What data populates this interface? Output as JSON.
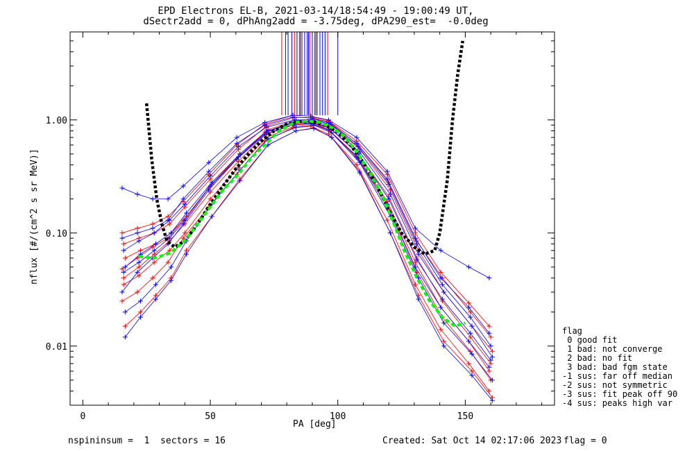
{
  "title_line1": "EPD Electrons EL-B, 2021-03-14/18:54:49 - 19:00:49 UT,",
  "title_line2": "dSectr2add = 0, dPhAng2add = -3.75deg, dPA290_est=  -0.0deg",
  "footer": {
    "left": "nspininsum =  1  sectors = 16",
    "created": "Created: Sat Oct 14 02:17:06 2023",
    "flag": "flag = 0"
  },
  "legend": {
    "title": "flag",
    "lines": [
      " 0 good fit",
      " 1 bad: not converge",
      " 2 bad: no fit",
      " 3 bad: bad fgm state",
      "-1 sus: far off median",
      "-2 sus: not symmetric",
      "-3 sus: fit peak off 90",
      "-4 sus: peaks high var"
    ]
  },
  "colors": {
    "red_series": "#ff0000",
    "blue_series": "#0000ff",
    "fit": "#000000",
    "median": "#00ff00"
  },
  "chart_data": {
    "type": "line",
    "xlabel": "PA [deg]",
    "ylabel": "nflux [#/(cm^2 s sr MeV)]",
    "xlim": [
      -5,
      185
    ],
    "ylim": [
      0.003,
      6
    ],
    "yscale": "log",
    "xticks": [
      0,
      50,
      100,
      150
    ],
    "yticks": [
      {
        "value": 0.01,
        "label": "0.01"
      },
      {
        "value": 0.1,
        "label": "0.10"
      },
      {
        "value": 1.0,
        "label": "1.00"
      }
    ],
    "pa_bins": [
      16,
      22,
      28,
      34,
      40,
      50,
      61,
      72,
      83,
      90,
      97,
      108,
      120,
      131,
      141,
      152,
      160
    ],
    "typical_profile": [
      0.05,
      0.055,
      0.065,
      0.08,
      0.12,
      0.22,
      0.42,
      0.75,
      0.95,
      0.95,
      0.85,
      0.5,
      0.2,
      0.06,
      0.028,
      0.014,
      0.008
    ],
    "series": [
      {
        "name": "flag 0 red",
        "color": "red",
        "values": [
          0.048,
          0.06,
          0.075,
          0.09,
          0.13,
          0.25,
          0.45,
          0.78,
          0.93,
          0.96,
          0.82,
          0.48,
          0.19,
          0.055,
          0.022,
          0.011,
          0.006
        ]
      },
      {
        "name": "flag 0 red",
        "color": "red",
        "values": [
          0.035,
          0.042,
          0.055,
          0.07,
          0.1,
          0.2,
          0.38,
          0.7,
          0.88,
          0.92,
          0.8,
          0.45,
          0.16,
          0.045,
          0.018,
          0.009,
          0.005
        ]
      },
      {
        "name": "flag 0 red",
        "color": "red",
        "values": [
          0.06,
          0.07,
          0.08,
          0.1,
          0.14,
          0.27,
          0.5,
          0.82,
          0.99,
          1.02,
          0.9,
          0.55,
          0.24,
          0.07,
          0.03,
          0.015,
          0.009
        ]
      },
      {
        "name": "flag 0 red",
        "color": "red",
        "values": [
          0.025,
          0.03,
          0.04,
          0.055,
          0.09,
          0.17,
          0.33,
          0.65,
          0.85,
          0.88,
          0.75,
          0.4,
          0.13,
          0.035,
          0.014,
          0.007,
          0.004
        ]
      },
      {
        "name": "flag 0 red",
        "color": "red",
        "values": [
          0.08,
          0.09,
          0.1,
          0.12,
          0.17,
          0.3,
          0.55,
          0.88,
          1.05,
          1.05,
          0.95,
          0.6,
          0.28,
          0.085,
          0.04,
          0.02,
          0.012
        ]
      },
      {
        "name": "flag 0 red",
        "color": "red",
        "values": [
          0.015,
          0.02,
          0.028,
          0.04,
          0.07,
          0.14,
          0.3,
          0.6,
          0.8,
          0.85,
          0.7,
          0.35,
          0.1,
          0.028,
          0.011,
          0.006,
          0.0035
        ]
      },
      {
        "name": "flag 0 red",
        "color": "red",
        "values": [
          0.1,
          0.11,
          0.12,
          0.14,
          0.19,
          0.33,
          0.6,
          0.92,
          1.1,
          1.08,
          0.98,
          0.65,
          0.33,
          0.1,
          0.045,
          0.024,
          0.015
        ]
      },
      {
        "name": "flag 0 red",
        "color": "red",
        "values": [
          0.04,
          0.05,
          0.065,
          0.085,
          0.12,
          0.23,
          0.43,
          0.76,
          0.92,
          0.94,
          0.84,
          0.5,
          0.21,
          0.06,
          0.025,
          0.012,
          0.007
        ]
      },
      {
        "name": "flag 0 blue",
        "color": "blue",
        "values": [
          0.05,
          0.065,
          0.08,
          0.1,
          0.15,
          0.28,
          0.5,
          0.8,
          0.97,
          0.98,
          0.86,
          0.52,
          0.22,
          0.065,
          0.03,
          0.015,
          0.008
        ]
      },
      {
        "name": "flag 0 blue",
        "color": "blue",
        "values": [
          0.03,
          0.045,
          0.06,
          0.08,
          0.12,
          0.24,
          0.45,
          0.74,
          0.9,
          0.93,
          0.82,
          0.47,
          0.18,
          0.05,
          0.022,
          0.011,
          0.0065
        ]
      },
      {
        "name": "flag 0 blue",
        "color": "blue",
        "values": [
          0.07,
          0.085,
          0.1,
          0.13,
          0.18,
          0.32,
          0.58,
          0.86,
          1.0,
          1.0,
          0.92,
          0.58,
          0.27,
          0.08,
          0.035,
          0.018,
          0.01
        ]
      },
      {
        "name": "flag 0 blue",
        "color": "blue",
        "values": [
          0.02,
          0.025,
          0.035,
          0.05,
          0.085,
          0.18,
          0.36,
          0.68,
          0.86,
          0.9,
          0.77,
          0.42,
          0.14,
          0.04,
          0.016,
          0.0085,
          0.005
        ]
      },
      {
        "name": "flag 0 blue",
        "color": "blue",
        "values": [
          0.09,
          0.1,
          0.11,
          0.13,
          0.2,
          0.35,
          0.62,
          0.9,
          1.06,
          1.04,
          0.95,
          0.62,
          0.3,
          0.09,
          0.04,
          0.022,
          0.013
        ]
      },
      {
        "name": "flag 0 blue",
        "color": "blue",
        "values": [
          0.045,
          0.055,
          0.07,
          0.09,
          0.13,
          0.26,
          0.47,
          0.78,
          0.95,
          0.96,
          0.85,
          0.5,
          0.2,
          0.058,
          0.026,
          0.013,
          0.0075
        ]
      },
      {
        "name": "flag 0 blue",
        "color": "blue",
        "values": [
          0.012,
          0.018,
          0.026,
          0.038,
          0.065,
          0.14,
          0.29,
          0.6,
          0.8,
          0.84,
          0.7,
          0.34,
          0.1,
          0.026,
          0.01,
          0.0055,
          0.0033
        ]
      },
      {
        "name": "flag 0 blue",
        "color": "blue",
        "values": [
          0.25,
          0.22,
          0.2,
          0.2,
          0.26,
          0.42,
          0.7,
          0.95,
          1.1,
          1.08,
          1.0,
          0.7,
          0.35,
          0.11,
          0.07,
          0.05,
          0.04
        ]
      }
    ],
    "fit_curve": {
      "name": "fit",
      "x": [
        25,
        27,
        29,
        31,
        33,
        36,
        40,
        45,
        50,
        55,
        60,
        65,
        70,
        75,
        80,
        85,
        90,
        95,
        100,
        105,
        110,
        115,
        120,
        125,
        130,
        134,
        138,
        140,
        143,
        145,
        147,
        149
      ],
      "y": [
        1.4,
        0.45,
        0.2,
        0.12,
        0.085,
        0.075,
        0.085,
        0.12,
        0.18,
        0.26,
        0.37,
        0.5,
        0.65,
        0.8,
        0.92,
        0.97,
        0.96,
        0.9,
        0.78,
        0.6,
        0.42,
        0.27,
        0.16,
        0.1,
        0.075,
        0.065,
        0.07,
        0.1,
        0.3,
        1.0,
        2.5,
        5.0
      ]
    },
    "median_curve": {
      "name": "median",
      "x": [
        22,
        28,
        34,
        40,
        45,
        50,
        55,
        61,
        66,
        72,
        77,
        83,
        88,
        93,
        98,
        103,
        108,
        113,
        118,
        122,
        126,
        131,
        136,
        141,
        146,
        150
      ],
      "y": [
        0.062,
        0.06,
        0.066,
        0.085,
        0.12,
        0.17,
        0.24,
        0.33,
        0.46,
        0.62,
        0.8,
        0.95,
        0.98,
        0.95,
        0.85,
        0.7,
        0.5,
        0.33,
        0.2,
        0.12,
        0.07,
        0.04,
        0.025,
        0.018,
        0.015,
        0.016
      ]
    }
  }
}
